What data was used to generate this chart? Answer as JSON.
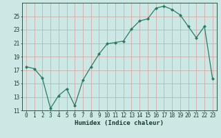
{
  "xlabel": "Humidex (Indice chaleur)",
  "x": [
    0,
    1,
    2,
    3,
    4,
    5,
    6,
    7,
    8,
    9,
    10,
    11,
    12,
    13,
    14,
    15,
    16,
    17,
    18,
    19,
    20,
    21,
    22,
    23
  ],
  "y": [
    17.5,
    17.2,
    15.8,
    11.3,
    13.2,
    14.2,
    11.7,
    15.5,
    17.5,
    19.4,
    20.9,
    21.1,
    21.3,
    23.1,
    24.3,
    24.6,
    26.2,
    26.5,
    26.0,
    25.2,
    23.5,
    21.8,
    23.5,
    15.7
  ],
  "line_color": "#2d7a63",
  "marker": "D",
  "marker_size": 2.0,
  "bg_color": "#cce8e4",
  "grid_color": "#b8d8d4",
  "tick_color": "#1a3a30",
  "ylim": [
    11,
    27
  ],
  "yticks": [
    11,
    13,
    15,
    17,
    19,
    21,
    23,
    25
  ],
  "xlim": [
    -0.5,
    23.5
  ],
  "label_fontsize": 6.5,
  "tick_fontsize": 5.5
}
